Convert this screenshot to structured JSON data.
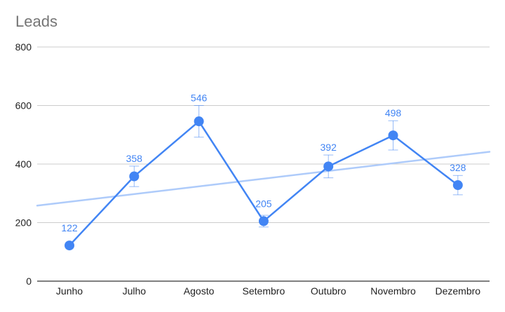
{
  "chart_data": {
    "type": "line",
    "title": "Leads",
    "categories": [
      "Junho",
      "Julho",
      "Agosto",
      "Setembro",
      "Outubro",
      "Novembro",
      "Dezembro"
    ],
    "series": [
      {
        "values": [
          122,
          358,
          546,
          205,
          392,
          498,
          328
        ],
        "error_low": [
          122,
          323,
          492,
          185,
          353,
          448,
          295
        ],
        "error_high": [
          122,
          393,
          600,
          225,
          431,
          548,
          361
        ],
        "color": "#4285f4"
      }
    ],
    "trendline": {
      "type": "linear",
      "start_value": 258,
      "end_value": 442,
      "color": "#aecbfa"
    },
    "ylim": [
      0,
      800
    ],
    "yticks": [
      0,
      200,
      400,
      600,
      800
    ],
    "grid": true,
    "data_labels": [
      "122",
      "358",
      "546",
      "205",
      "392",
      "498",
      "328"
    ],
    "xlabel": "",
    "ylabel": ""
  },
  "colors": {
    "series": "#4285f4",
    "trend": "#aecbfa",
    "grid": "#cccccc",
    "axis": "#333333",
    "title": "#757575"
  }
}
